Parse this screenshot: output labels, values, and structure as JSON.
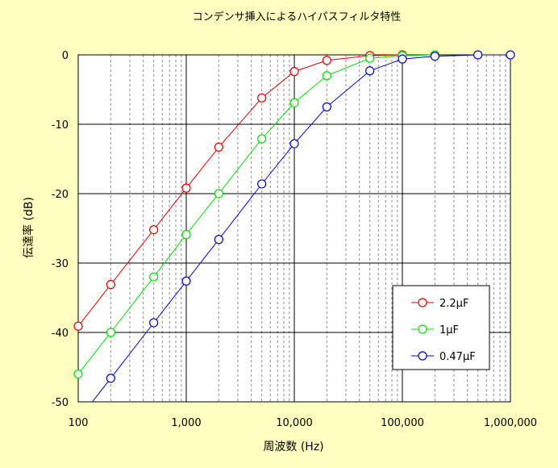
{
  "chart_data": {
    "type": "line",
    "title": "コンデンサ挿入によるハイパスフィルタ特性",
    "xlabel": "周波数 (Hz)",
    "ylabel": "伝達率 (dB)",
    "xscale": "log",
    "xlim": [
      100,
      1000000
    ],
    "ylim": [
      -50,
      0
    ],
    "x_tick_values": [
      100,
      1000,
      10000,
      100000,
      1000000
    ],
    "x_tick_labels": [
      "100",
      "1,000",
      "10,000",
      "100,000",
      "1,000,000"
    ],
    "y_tick_values": [
      0,
      -10,
      -20,
      -30,
      -40,
      -50
    ],
    "y_tick_labels": [
      "0",
      "-10",
      "-20",
      "-30",
      "-40",
      "-50"
    ],
    "grid": true,
    "legend_position": "lower-right",
    "series": [
      {
        "name": "2.2μF",
        "color": "#e00000",
        "x": [
          100,
          200,
          500,
          1000,
          2000,
          5000,
          10000,
          20000,
          50000,
          100000
        ],
        "y": [
          -39.1,
          -33.1,
          -25.2,
          -19.2,
          -13.3,
          -6.2,
          -2.4,
          -0.8,
          -0.1,
          0
        ]
      },
      {
        "name": "1μF",
        "color": "#00e000",
        "x": [
          100,
          200,
          500,
          1000,
          2000,
          5000,
          10000,
          20000,
          50000,
          100000,
          200000
        ],
        "y": [
          -46,
          -40,
          -32,
          -25.9,
          -20,
          -12.1,
          -6.9,
          -3,
          -0.5,
          -0.1,
          0
        ]
      },
      {
        "name": "0.47μF",
        "color": "#0000cc",
        "x": [
          100,
          200,
          500,
          1000,
          2000,
          5000,
          10000,
          20000,
          50000,
          100000,
          200000,
          500000,
          1000000
        ],
        "y": [
          -52.6,
          -46.6,
          -38.6,
          -32.6,
          -26.6,
          -18.6,
          -12.8,
          -7.5,
          -2.3,
          -0.6,
          -0.2,
          0,
          0
        ]
      }
    ]
  }
}
